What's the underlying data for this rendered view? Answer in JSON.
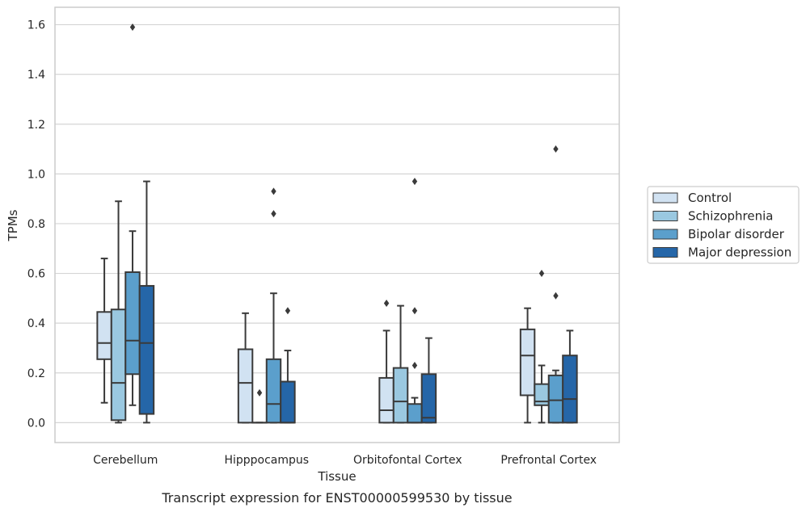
{
  "chart_data": {
    "type": "boxplot",
    "caption": "Transcript expression for ENST00000599530 by tissue",
    "xlabel": "Tissue",
    "ylabel": "TPMs",
    "ylim": [
      -0.08,
      1.67
    ],
    "yticks": [
      "0.0",
      "0.2",
      "0.4",
      "0.6",
      "0.8",
      "1.0",
      "1.2",
      "1.4",
      "1.6"
    ],
    "grid": "horizontal",
    "legend_position": "right",
    "categories": [
      "Cerebellum",
      "Hipppocampus",
      "Orbitofontal Cortex",
      "Prefrontal Cortex"
    ],
    "series": [
      {
        "name": "Control",
        "color": "#d1e2f2",
        "boxes": [
          {
            "whislo": 0.08,
            "q1": 0.255,
            "med": 0.32,
            "q3": 0.445,
            "whishi": 0.66,
            "fliers": []
          },
          {
            "whislo": 0.0,
            "q1": 0.0,
            "med": 0.16,
            "q3": 0.295,
            "whishi": 0.44,
            "fliers": []
          },
          {
            "whislo": 0.0,
            "q1": 0.0,
            "med": 0.05,
            "q3": 0.18,
            "whishi": 0.37,
            "fliers": [
              0.48
            ]
          },
          {
            "whislo": 0.0,
            "q1": 0.11,
            "med": 0.27,
            "q3": 0.375,
            "whishi": 0.46,
            "fliers": []
          }
        ]
      },
      {
        "name": "Schizophrenia",
        "color": "#9ac8e0",
        "boxes": [
          {
            "whislo": 0.0,
            "q1": 0.01,
            "med": 0.16,
            "q3": 0.455,
            "whishi": 0.89,
            "fliers": []
          },
          {
            "whislo": 0.0,
            "q1": 0.0,
            "med": 0.0,
            "q3": 0.0,
            "whishi": 0.0,
            "fliers": [
              0.12
            ]
          },
          {
            "whislo": 0.0,
            "q1": 0.0,
            "med": 0.085,
            "q3": 0.22,
            "whishi": 0.47,
            "fliers": []
          },
          {
            "whislo": 0.0,
            "q1": 0.07,
            "med": 0.085,
            "q3": 0.155,
            "whishi": 0.23,
            "fliers": [
              0.6
            ]
          }
        ]
      },
      {
        "name": "Bipolar disorder",
        "color": "#5b9fcc",
        "boxes": [
          {
            "whislo": 0.07,
            "q1": 0.195,
            "med": 0.33,
            "q3": 0.605,
            "whishi": 0.77,
            "fliers": [
              1.59
            ]
          },
          {
            "whislo": 0.0,
            "q1": 0.0,
            "med": 0.075,
            "q3": 0.255,
            "whishi": 0.52,
            "fliers": [
              0.84,
              0.93
            ]
          },
          {
            "whislo": 0.0,
            "q1": 0.0,
            "med": 0.0,
            "q3": 0.075,
            "whishi": 0.1,
            "fliers": [
              0.23,
              0.45,
              0.97
            ]
          },
          {
            "whislo": 0.0,
            "q1": 0.0,
            "med": 0.09,
            "q3": 0.19,
            "whishi": 0.21,
            "fliers": [
              0.51,
              1.1
            ]
          }
        ]
      },
      {
        "name": "Major depression",
        "color": "#2566a8",
        "boxes": [
          {
            "whislo": 0.0,
            "q1": 0.035,
            "med": 0.32,
            "q3": 0.55,
            "whishi": 0.97,
            "fliers": []
          },
          {
            "whislo": 0.0,
            "q1": 0.0,
            "med": 0.0,
            "q3": 0.165,
            "whishi": 0.29,
            "fliers": [
              0.45
            ]
          },
          {
            "whislo": 0.0,
            "q1": 0.0,
            "med": 0.02,
            "q3": 0.195,
            "whishi": 0.34,
            "fliers": []
          },
          {
            "whislo": 0.0,
            "q1": 0.0,
            "med": 0.095,
            "q3": 0.27,
            "whishi": 0.37,
            "fliers": []
          }
        ]
      }
    ]
  }
}
